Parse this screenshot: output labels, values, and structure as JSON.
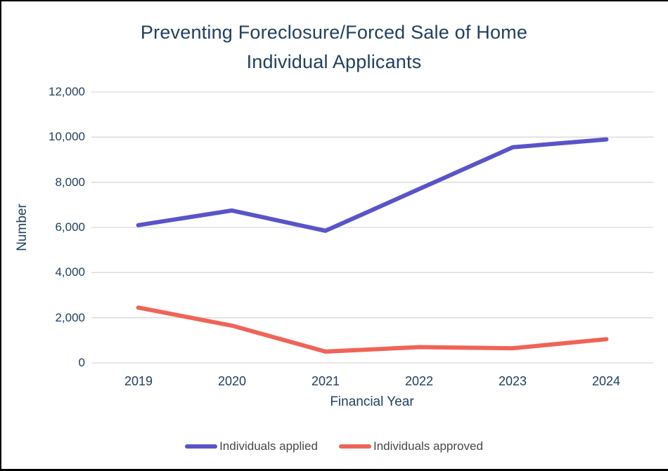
{
  "frame": {
    "background": "#ffffff",
    "border_color": "#000000"
  },
  "colors": {
    "text_navy": "#22405f",
    "gridline": "#d9d9d9",
    "legend_text": "#474747",
    "series_applied": "#5a54c8",
    "series_approved": "#ef6457"
  },
  "chart_data": {
    "type": "line",
    "title": "Preventing Foreclosure/Forced Sale of Home",
    "subtitle": "Individual Applicants",
    "xlabel": "Financial Year",
    "ylabel": "Number",
    "categories": [
      "2019",
      "2020",
      "2021",
      "2022",
      "2023",
      "2024"
    ],
    "series": [
      {
        "name": "Individuals applied",
        "color": "#5a54c8",
        "values": [
          6100,
          6750,
          5850,
          7700,
          9550,
          9900
        ]
      },
      {
        "name": "Individuals approved",
        "color": "#ef6457",
        "values": [
          2450,
          1650,
          500,
          700,
          650,
          1050
        ]
      }
    ],
    "y_ticks": [
      "0",
      "2,000",
      "4,000",
      "6,000",
      "8,000",
      "10,000",
      "12,000"
    ],
    "y_tick_values": [
      0,
      2000,
      4000,
      6000,
      8000,
      10000,
      12000
    ],
    "ylim": [
      0,
      12000
    ],
    "grid": "horizontal",
    "legend_position": "bottom",
    "line_width": 6
  }
}
